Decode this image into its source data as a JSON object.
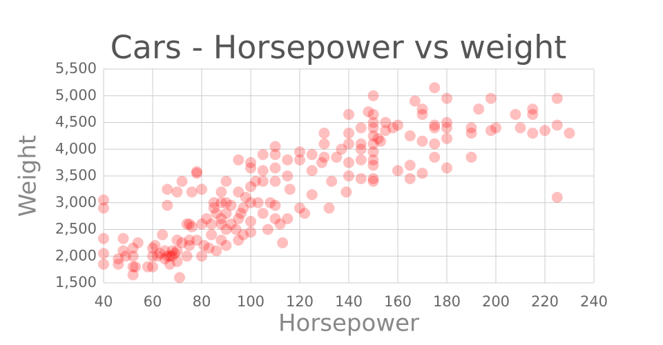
{
  "chart_data": {
    "type": "scatter",
    "title": "Cars - Horsepower vs weight",
    "x_label": "Horsepower",
    "y_label": "Weight",
    "color": "#ff0000",
    "grid": true,
    "xlim": [
      40,
      240
    ],
    "xticks": [
      40,
      60,
      80,
      100,
      120,
      140,
      160,
      180,
      200,
      220,
      240
    ],
    "ylim": [
      1500,
      5500
    ],
    "yticks": [
      {
        "value": 1500,
        "label": "1,500"
      },
      {
        "value": 2000,
        "label": "2,000"
      },
      {
        "value": 2500,
        "label": "2,500"
      },
      {
        "value": 3000,
        "label": "3,000"
      },
      {
        "value": 3500,
        "label": "3,500"
      },
      {
        "value": 4000,
        "label": "4,000"
      },
      {
        "value": 4500,
        "label": "4,500"
      },
      {
        "value": 5000,
        "label": "5,000"
      },
      {
        "value": 5500,
        "label": "5,500"
      }
    ],
    "x": [
      40,
      40,
      40,
      40,
      40,
      46,
      46,
      48,
      48,
      49,
      52,
      52,
      52,
      52,
      53,
      54,
      58,
      60,
      60,
      60,
      61,
      62,
      63,
      64,
      65,
      65,
      66,
      67,
      67,
      68,
      68,
      69,
      70,
      70,
      70,
      71,
      66,
      66,
      70,
      72,
      72,
      74,
      74,
      75,
      75,
      75,
      76,
      76,
      78,
      78,
      78,
      80,
      80,
      80,
      81,
      82,
      83,
      84,
      84,
      85,
      85,
      86,
      86,
      88,
      88,
      88,
      88,
      88,
      90,
      90,
      90,
      90,
      90,
      92,
      92,
      94,
      95,
      95,
      95,
      95,
      96,
      97,
      97,
      98,
      100,
      100,
      100,
      100,
      100,
      100,
      102,
      103,
      105,
      105,
      105,
      105,
      107,
      108,
      110,
      110,
      110,
      110,
      110,
      110,
      112,
      113,
      115,
      115,
      115,
      116,
      120,
      120,
      120,
      122,
      125,
      125,
      125,
      129,
      130,
      130,
      130,
      132,
      133,
      135,
      137,
      139,
      140,
      140,
      140,
      140,
      140,
      145,
      145,
      145,
      145,
      145,
      148,
      150,
      150,
      150,
      150,
      150,
      150,
      150,
      150,
      150,
      150,
      150,
      152,
      153,
      155,
      155,
      158,
      160,
      160,
      165,
      165,
      165,
      167,
      170,
      170,
      170,
      170,
      175,
      175,
      175,
      175,
      175,
      180,
      180,
      180,
      180,
      180,
      190,
      190,
      190,
      193,
      198,
      198,
      200,
      208,
      210,
      215,
      215,
      215,
      220,
      225,
      225,
      225,
      230
    ],
    "values": [
      3050,
      2900,
      2330,
      2050,
      1850,
      1950,
      1850,
      2330,
      2100,
      2000,
      2150,
      2000,
      1800,
      1650,
      1800,
      2250,
      1800,
      1800,
      2000,
      2150,
      2200,
      2000,
      2050,
      2400,
      1950,
      2100,
      2000,
      2000,
      1850,
      2000,
      2100,
      2050,
      1900,
      2100,
      2300,
      1600,
      3250,
      2950,
      3200,
      2250,
      3400,
      2600,
      2000,
      2300,
      2200,
      2600,
      2550,
      3200,
      3550,
      3580,
      2300,
      2600,
      2000,
      3250,
      2200,
      2700,
      2150,
      2600,
      2400,
      2900,
      3000,
      2800,
      2100,
      2700,
      3000,
      3200,
      2300,
      2600,
      2500,
      2800,
      3000,
      3400,
      2200,
      2600,
      2950,
      2500,
      3200,
      2700,
      2300,
      3800,
      2800,
      2400,
      2900,
      3100,
      3300,
      3650,
      3750,
      2650,
      3000,
      2450,
      3400,
      3000,
      3400,
      3900,
      3600,
      2800,
      2500,
      3000,
      2950,
      3650,
      3400,
      4050,
      3900,
      2700,
      2600,
      2250,
      2700,
      3500,
      3800,
      3250,
      3950,
      3800,
      2900,
      2800,
      3900,
      3600,
      3150,
      3750,
      4100,
      4300,
      3850,
      2900,
      3400,
      3850,
      4000,
      3200,
      4650,
      4300,
      4100,
      3500,
      3750,
      4400,
      4100,
      4000,
      3800,
      3450,
      4700,
      5000,
      4650,
      4500,
      4400,
      4250,
      4100,
      3950,
      3800,
      3700,
      3450,
      3400,
      4200,
      4150,
      4500,
      4350,
      4400,
      4450,
      3600,
      4250,
      3700,
      3450,
      4900,
      4750,
      4650,
      4150,
      3550,
      5150,
      4450,
      4400,
      4100,
      3850,
      4950,
      4500,
      4400,
      4200,
      3650,
      4400,
      4300,
      3850,
      4750,
      4950,
      4350,
      4400,
      4650,
      4400,
      4750,
      4650,
      4300,
      4350,
      4950,
      4450,
      3100,
      4300
    ]
  }
}
